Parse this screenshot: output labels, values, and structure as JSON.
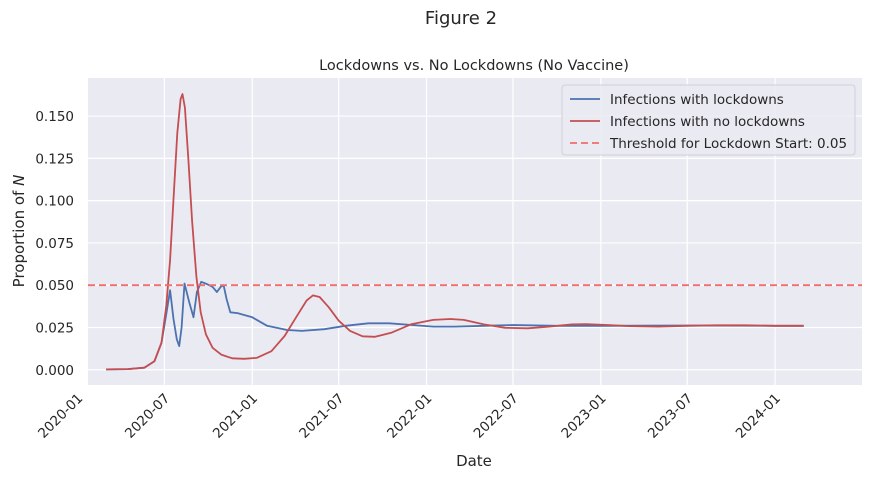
{
  "figure_title": "Figure 2",
  "chart_data": {
    "type": "line",
    "title": "Lockdowns vs. No Lockdowns (No Vaccine)",
    "xlabel": "Date",
    "ylabel_prefix": "Proportion of ",
    "ylabel_symbol": "N",
    "x_type": "date",
    "xlim": [
      "2020-01-23",
      "2024-07-01"
    ],
    "ylim": [
      -0.009,
      0.1725
    ],
    "xticks": [
      "2020-01",
      "2020-07",
      "2021-01",
      "2021-07",
      "2022-01",
      "2022-07",
      "2023-01",
      "2023-07",
      "2024-01"
    ],
    "yticks": [
      0.0,
      0.025,
      0.05,
      0.075,
      0.1,
      0.125,
      0.15
    ],
    "ytick_labels": [
      "0.000",
      "0.025",
      "0.050",
      "0.075",
      "0.100",
      "0.125",
      "0.150"
    ],
    "grid": true,
    "legend_position": "upper right",
    "colors": {
      "background": "#eaeaf2",
      "grid": "#ffffff",
      "lockdowns": "#4c72b0",
      "no_lockdowns": "#c44e52",
      "threshold": "#f26d6d"
    },
    "series": [
      {
        "name": "Infections with lockdowns",
        "style": "solid",
        "points": [
          [
            "2020-03-01",
            0.0002
          ],
          [
            "2020-04-15",
            0.0004
          ],
          [
            "2020-05-20",
            0.0012
          ],
          [
            "2020-06-10",
            0.005
          ],
          [
            "2020-06-25",
            0.016
          ],
          [
            "2020-07-05",
            0.033
          ],
          [
            "2020-07-13",
            0.047
          ],
          [
            "2020-07-20",
            0.03
          ],
          [
            "2020-07-27",
            0.018
          ],
          [
            "2020-08-01",
            0.014
          ],
          [
            "2020-08-06",
            0.025
          ],
          [
            "2020-08-12",
            0.051
          ],
          [
            "2020-08-22",
            0.04
          ],
          [
            "2020-08-31",
            0.031
          ],
          [
            "2020-09-07",
            0.046
          ],
          [
            "2020-09-16",
            0.052
          ],
          [
            "2020-09-25",
            0.051
          ],
          [
            "2020-10-03",
            0.05
          ],
          [
            "2020-10-10",
            0.049
          ],
          [
            "2020-10-19",
            0.046
          ],
          [
            "2020-10-27",
            0.049
          ],
          [
            "2020-11-02",
            0.05
          ],
          [
            "2020-11-08",
            0.042
          ],
          [
            "2020-11-16",
            0.034
          ],
          [
            "2020-12-01",
            0.0335
          ],
          [
            "2021-01-01",
            0.031
          ],
          [
            "2021-02-01",
            0.026
          ],
          [
            "2021-03-15",
            0.0235
          ],
          [
            "2021-04-15",
            0.023
          ],
          [
            "2021-06-01",
            0.024
          ],
          [
            "2021-07-15",
            0.026
          ],
          [
            "2021-09-01",
            0.0275
          ],
          [
            "2021-10-15",
            0.0275
          ],
          [
            "2021-12-01",
            0.0265
          ],
          [
            "2022-01-15",
            0.0255
          ],
          [
            "2022-03-01",
            0.0255
          ],
          [
            "2022-05-01",
            0.026
          ],
          [
            "2022-07-01",
            0.0265
          ],
          [
            "2022-10-01",
            0.026
          ],
          [
            "2023-01-01",
            0.026
          ],
          [
            "2023-07-01",
            0.0262
          ],
          [
            "2024-01-01",
            0.026
          ],
          [
            "2024-03-01",
            0.026
          ]
        ]
      },
      {
        "name": "Infections with no lockdowns",
        "style": "solid",
        "points": [
          [
            "2020-03-01",
            0.0002
          ],
          [
            "2020-04-15",
            0.0004
          ],
          [
            "2020-05-20",
            0.0012
          ],
          [
            "2020-06-10",
            0.005
          ],
          [
            "2020-06-25",
            0.016
          ],
          [
            "2020-07-05",
            0.038
          ],
          [
            "2020-07-13",
            0.065
          ],
          [
            "2020-07-21",
            0.105
          ],
          [
            "2020-07-28",
            0.14
          ],
          [
            "2020-08-04",
            0.16
          ],
          [
            "2020-08-08",
            0.163
          ],
          [
            "2020-08-13",
            0.155
          ],
          [
            "2020-08-20",
            0.125
          ],
          [
            "2020-08-28",
            0.088
          ],
          [
            "2020-09-06",
            0.055
          ],
          [
            "2020-09-15",
            0.034
          ],
          [
            "2020-09-26",
            0.021
          ],
          [
            "2020-10-10",
            0.013
          ],
          [
            "2020-10-28",
            0.009
          ],
          [
            "2020-11-20",
            0.0068
          ],
          [
            "2020-12-15",
            0.0065
          ],
          [
            "2021-01-10",
            0.007
          ],
          [
            "2021-02-10",
            0.011
          ],
          [
            "2021-03-10",
            0.02
          ],
          [
            "2021-04-05",
            0.032
          ],
          [
            "2021-04-25",
            0.041
          ],
          [
            "2021-05-08",
            0.044
          ],
          [
            "2021-05-22",
            0.043
          ],
          [
            "2021-06-10",
            0.037
          ],
          [
            "2021-07-01",
            0.029
          ],
          [
            "2021-07-25",
            0.023
          ],
          [
            "2021-08-20",
            0.0198
          ],
          [
            "2021-09-15",
            0.0195
          ],
          [
            "2021-10-20",
            0.022
          ],
          [
            "2021-12-01",
            0.027
          ],
          [
            "2022-01-15",
            0.0295
          ],
          [
            "2022-02-20",
            0.03
          ],
          [
            "2022-03-20",
            0.0295
          ],
          [
            "2022-05-01",
            0.0268
          ],
          [
            "2022-06-15",
            0.0248
          ],
          [
            "2022-08-01",
            0.0245
          ],
          [
            "2022-09-15",
            0.0255
          ],
          [
            "2022-11-01",
            0.0268
          ],
          [
            "2022-12-01",
            0.027
          ],
          [
            "2023-01-15",
            0.0265
          ],
          [
            "2023-03-01",
            0.0258
          ],
          [
            "2023-05-01",
            0.0255
          ],
          [
            "2023-07-01",
            0.026
          ],
          [
            "2023-09-01",
            0.0263
          ],
          [
            "2023-11-01",
            0.0263
          ],
          [
            "2024-01-01",
            0.026
          ],
          [
            "2024-03-01",
            0.026
          ]
        ]
      },
      {
        "name": "Threshold for Lockdown Start: 0.05",
        "style": "dashed",
        "constant": 0.05
      }
    ]
  }
}
